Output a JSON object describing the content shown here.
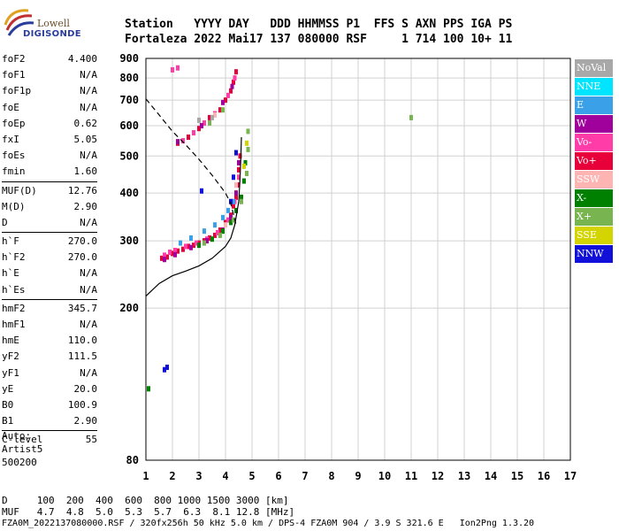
{
  "logo": {
    "line1": "Lowell",
    "line2": "DIGISONDE"
  },
  "header": {
    "row1": "Station   YYYY DAY   DDD HHMMSS P1  FFS S AXN PPS IGA PS",
    "row2": "Fortaleza 2022 Mai17 137 080000 RSF     1 714 100 10+ 11"
  },
  "params": [
    [
      {
        "label": "foF2",
        "value": "4.400"
      },
      {
        "label": "foF1",
        "value": "N/A"
      },
      {
        "label": "foF1p",
        "value": "N/A"
      },
      {
        "label": "foE",
        "value": "N/A"
      },
      {
        "label": "foEp",
        "value": "0.62"
      },
      {
        "label": "fxI",
        "value": "5.05"
      },
      {
        "label": "foEs",
        "value": "N/A"
      },
      {
        "label": "fmin",
        "value": "1.60"
      }
    ],
    [
      {
        "label": "MUF(D)",
        "value": "12.76"
      },
      {
        "label": "M(D)",
        "value": "2.90"
      },
      {
        "label": "D",
        "value": "N/A"
      }
    ],
    [
      {
        "label": "h`F",
        "value": "270.0"
      },
      {
        "label": "h`F2",
        "value": "270.0"
      },
      {
        "label": "h`E",
        "value": "N/A"
      },
      {
        "label": "h`Es",
        "value": "N/A"
      }
    ],
    [
      {
        "label": "hmF2",
        "value": "345.7"
      },
      {
        "label": "hmF1",
        "value": "N/A"
      },
      {
        "label": "hmE",
        "value": "110.0"
      },
      {
        "label": "yF2",
        "value": "111.5"
      },
      {
        "label": "yF1",
        "value": "N/A"
      },
      {
        "label": "yE",
        "value": "20.0"
      },
      {
        "label": "B0",
        "value": "100.9"
      },
      {
        "label": "B1",
        "value": "2.90"
      }
    ],
    [
      {
        "label": "C-level",
        "value": "55"
      }
    ]
  ],
  "auto": {
    "line1": "Auto:",
    "line2": "Artist5",
    "line3": "500200"
  },
  "legend": [
    {
      "label": "NoVal",
      "color": "#a8a8a8",
      "text_color": "#ffffff"
    },
    {
      "label": "NNE",
      "color": "#00e5ff",
      "text_color": "#ffffff"
    },
    {
      "label": "E",
      "color": "#3aa0e8",
      "text_color": "#ffffff"
    },
    {
      "label": "W",
      "color": "#a0009c",
      "text_color": "#ffffff"
    },
    {
      "label": "Vo-",
      "color": "#ff3ca8",
      "text_color": "#ffffff"
    },
    {
      "label": "Vo+",
      "color": "#e8003a",
      "text_color": "#ffffff"
    },
    {
      "label": "SSW",
      "color": "#ffb4b4",
      "text_color": "#ffffff"
    },
    {
      "label": "X-",
      "color": "#008000",
      "text_color": "#ffffff"
    },
    {
      "label": "X+",
      "color": "#78b450",
      "text_color": "#ffffff"
    },
    {
      "label": "SSE",
      "color": "#d4d400",
      "text_color": "#ffffff"
    },
    {
      "label": "NNW",
      "color": "#1010d8",
      "text_color": "#ffffff"
    }
  ],
  "footer": {
    "line1": "D     100  200  400  600  800 1000 1500 3000 [km]",
    "line2": "MUF   4.7  4.8  5.0  5.3  5.7  6.3  8.1 12.8 [MHz]",
    "line3": "FZA0M_2022137080000.RSF / 320fx256h 50 kHz 5.0 km / DPS-4 FZA0M 904 / 3.9 S 321.6 E   Ion2Png 1.3.20"
  },
  "chart_data": {
    "type": "scatter",
    "xlim": [
      1,
      17
    ],
    "ylim": [
      80,
      900
    ],
    "x_ticks": [
      1,
      2,
      3,
      4,
      5,
      6,
      7,
      8,
      9,
      10,
      11,
      12,
      13,
      14,
      15,
      16,
      17
    ],
    "y_ticks": [
      80,
      200,
      300,
      400,
      500,
      600,
      700,
      800,
      900
    ],
    "grid": true,
    "series": [
      {
        "color": "#e8003a",
        "points": [
          [
            1.6,
            270
          ],
          [
            1.8,
            272
          ],
          [
            2.0,
            278
          ],
          [
            2.2,
            282
          ],
          [
            2.4,
            285
          ],
          [
            2.6,
            290
          ],
          [
            2.8,
            292
          ],
          [
            3.0,
            296
          ],
          [
            3.2,
            300
          ],
          [
            3.4,
            305
          ],
          [
            3.6,
            310
          ],
          [
            3.8,
            320
          ],
          [
            4.0,
            335
          ],
          [
            4.2,
            350
          ],
          [
            4.3,
            370
          ],
          [
            4.4,
            390
          ],
          [
            4.45,
            420
          ],
          [
            4.5,
            460
          ],
          [
            4.55,
            500
          ],
          [
            2.2,
            540
          ],
          [
            2.6,
            560
          ],
          [
            3.0,
            590
          ],
          [
            3.4,
            630
          ],
          [
            3.8,
            660
          ],
          [
            4.0,
            700
          ],
          [
            4.2,
            740
          ],
          [
            4.3,
            780
          ],
          [
            4.4,
            830
          ]
        ]
      },
      {
        "color": "#ff3ca8",
        "points": [
          [
            1.7,
            275
          ],
          [
            1.9,
            280
          ],
          [
            2.1,
            283
          ],
          [
            2.5,
            290
          ],
          [
            2.9,
            296
          ],
          [
            3.3,
            303
          ],
          [
            3.7,
            315
          ],
          [
            4.1,
            340
          ],
          [
            4.35,
            380
          ],
          [
            4.5,
            440
          ],
          [
            2.4,
            548
          ],
          [
            2.8,
            575
          ],
          [
            3.2,
            610
          ],
          [
            3.6,
            645
          ],
          [
            4.1,
            720
          ],
          [
            4.35,
            800
          ],
          [
            2.0,
            840
          ],
          [
            2.2,
            850
          ]
        ]
      },
      {
        "color": "#a0009c",
        "points": [
          [
            1.7,
            268
          ],
          [
            2.1,
            276
          ],
          [
            2.7,
            288
          ],
          [
            3.3,
            300
          ],
          [
            3.9,
            320
          ],
          [
            4.2,
            345
          ],
          [
            4.4,
            400
          ],
          [
            4.5,
            480
          ],
          [
            2.2,
            545
          ],
          [
            3.1,
            600
          ],
          [
            3.9,
            690
          ],
          [
            4.25,
            760
          ]
        ]
      },
      {
        "color": "#3aa0e8",
        "points": [
          [
            2.3,
            296
          ],
          [
            2.7,
            305
          ],
          [
            3.2,
            318
          ],
          [
            3.6,
            330
          ],
          [
            3.9,
            345
          ],
          [
            4.1,
            360
          ],
          [
            4.3,
            380
          ]
        ]
      },
      {
        "color": "#008000",
        "points": [
          [
            3.0,
            292
          ],
          [
            3.5,
            303
          ],
          [
            3.9,
            318
          ],
          [
            4.2,
            335
          ],
          [
            4.4,
            360
          ],
          [
            4.6,
            390
          ],
          [
            4.7,
            430
          ],
          [
            4.75,
            480
          ],
          [
            1.1,
            123
          ]
        ]
      },
      {
        "color": "#78b450",
        "points": [
          [
            3.2,
            296
          ],
          [
            3.8,
            310
          ],
          [
            4.3,
            340
          ],
          [
            4.6,
            380
          ],
          [
            4.8,
            450
          ],
          [
            4.85,
            520
          ],
          [
            4.85,
            580
          ],
          [
            3.4,
            610
          ],
          [
            3.9,
            660
          ],
          [
            11.0,
            630
          ]
        ]
      },
      {
        "color": "#1010d8",
        "points": [
          [
            1.7,
            138
          ],
          [
            1.8,
            140
          ],
          [
            4.2,
            380
          ],
          [
            4.3,
            440
          ],
          [
            4.4,
            510
          ],
          [
            3.1,
            405
          ]
        ]
      },
      {
        "color": "#d4d400",
        "points": [
          [
            4.7,
            470
          ],
          [
            4.8,
            540
          ]
        ]
      },
      {
        "color": "#ffb4b4",
        "points": [
          [
            4.0,
            330
          ],
          [
            4.4,
            420
          ],
          [
            3.6,
            640
          ]
        ]
      },
      {
        "color": "#a8a8a8",
        "points": [
          [
            3.0,
            620
          ],
          [
            3.5,
            630
          ]
        ]
      }
    ],
    "curves": [
      {
        "style": "dashed",
        "points": [
          [
            1.0,
            705
          ],
          [
            1.5,
            640
          ],
          [
            2.0,
            580
          ],
          [
            2.5,
            535
          ],
          [
            3.0,
            490
          ],
          [
            3.5,
            445
          ],
          [
            4.0,
            400
          ],
          [
            4.2,
            375
          ],
          [
            4.4,
            330
          ]
        ]
      },
      {
        "style": "solid",
        "points": [
          [
            1.0,
            215
          ],
          [
            1.5,
            232
          ],
          [
            2.0,
            243
          ],
          [
            2.5,
            250
          ],
          [
            3.0,
            258
          ],
          [
            3.5,
            270
          ],
          [
            4.0,
            290
          ],
          [
            4.2,
            305
          ],
          [
            4.35,
            330
          ],
          [
            4.5,
            380
          ],
          [
            4.55,
            440
          ],
          [
            4.58,
            500
          ],
          [
            4.6,
            560
          ]
        ]
      }
    ]
  }
}
